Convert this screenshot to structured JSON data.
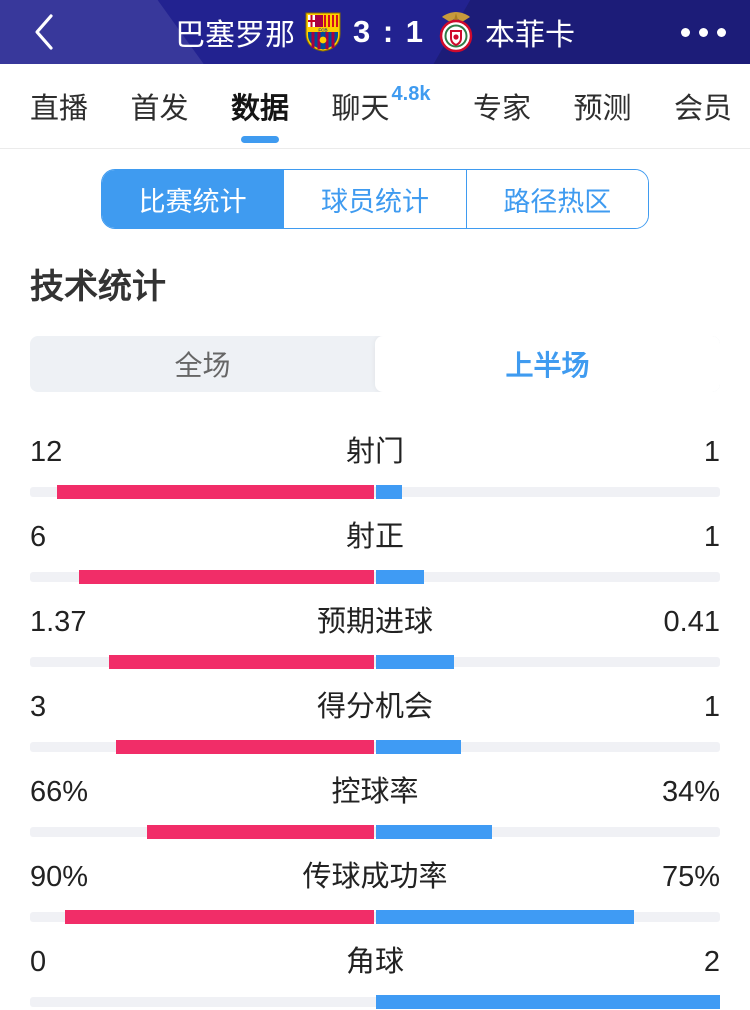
{
  "header": {
    "home_team": "巴塞罗那",
    "home_score": "3",
    "score_separator": ":",
    "away_score": "1",
    "away_team": "本菲卡"
  },
  "tabs": [
    {
      "label": "直播",
      "active": false
    },
    {
      "label": "首发",
      "active": false
    },
    {
      "label": "数据",
      "active": true
    },
    {
      "label": "聊天",
      "active": false,
      "badge": "4.8k"
    },
    {
      "label": "专家",
      "active": false
    },
    {
      "label": "预测",
      "active": false
    },
    {
      "label": "会员",
      "active": false
    }
  ],
  "segments": [
    {
      "label": "比赛统计",
      "active": true
    },
    {
      "label": "球员统计",
      "active": false
    },
    {
      "label": "路径热区",
      "active": false
    }
  ],
  "section_title": "技术统计",
  "period_toggle": [
    {
      "label": "全场",
      "active": false
    },
    {
      "label": "上半场",
      "active": true
    }
  ],
  "chart_data": {
    "type": "bar",
    "title": "技术统计 上半场 巴塞罗那 vs 本菲卡",
    "legend": [
      "巴塞罗那",
      "本菲卡"
    ],
    "series": [
      {
        "label": "射门",
        "home": "12",
        "away": "1",
        "home_val": 12,
        "away_val": 1,
        "mode": "count"
      },
      {
        "label": "射正",
        "home": "6",
        "away": "1",
        "home_val": 6,
        "away_val": 1,
        "mode": "count"
      },
      {
        "label": "预期进球",
        "home": "1.37",
        "away": "0.41",
        "home_val": 1.37,
        "away_val": 0.41,
        "mode": "count"
      },
      {
        "label": "得分机会",
        "home": "3",
        "away": "1",
        "home_val": 3,
        "away_val": 1,
        "mode": "count"
      },
      {
        "label": "控球率",
        "home": "66%",
        "away": "34%",
        "home_val": 66,
        "away_val": 34,
        "mode": "percent"
      },
      {
        "label": "传球成功率",
        "home": "90%",
        "away": "75%",
        "home_val": 90,
        "away_val": 75,
        "mode": "percent"
      },
      {
        "label": "角球",
        "home": "0",
        "away": "2",
        "home_val": 0,
        "away_val": 2,
        "mode": "count"
      }
    ]
  },
  "colors": {
    "header_bg": "#222290",
    "accent_blue": "#3f9bf0",
    "home_bar": "#f12d68",
    "away_bar": "#3f9bf4",
    "bar_track": "#f0f1f5"
  }
}
